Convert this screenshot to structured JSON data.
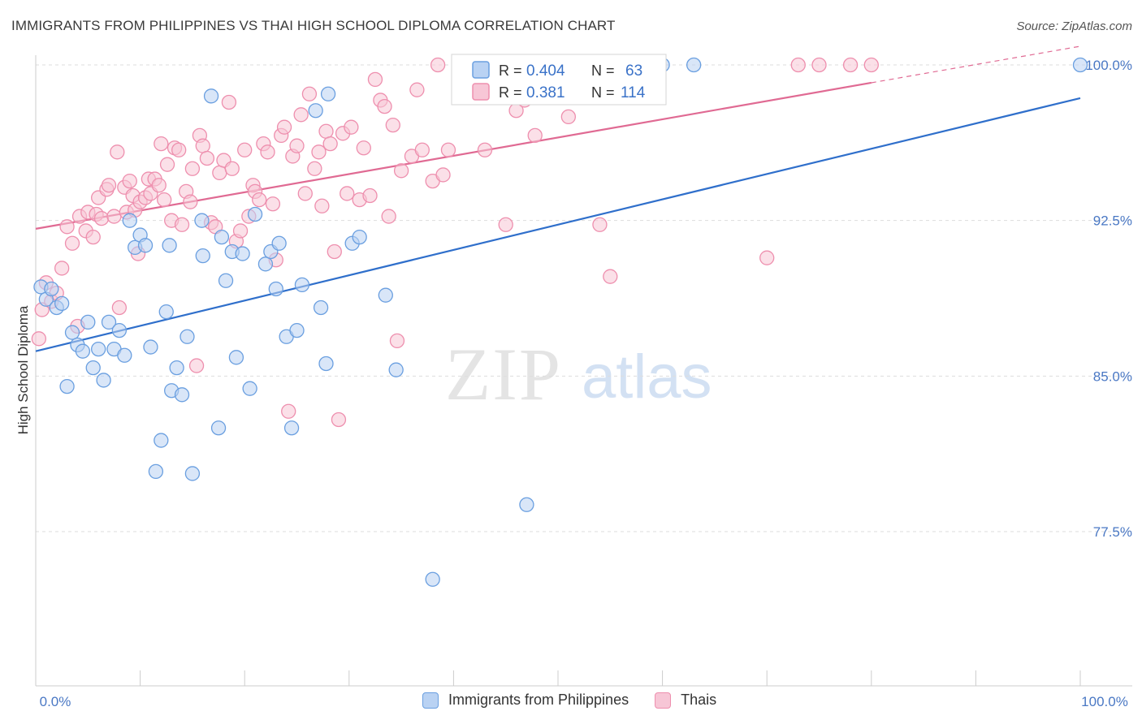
{
  "header": {
    "title": "IMMIGRANTS FROM PHILIPPINES VS THAI HIGH SCHOOL DIPLOMA CORRELATION CHART",
    "source": "Source: ZipAtlas.com"
  },
  "watermark": {
    "zip": "ZIP",
    "atlas": "atlas"
  },
  "colors": {
    "blue": "#6a9fe0",
    "blue_fill": "#b9d2f3",
    "blue_line": "#2f6fcb",
    "pink": "#ee8fae",
    "pink_fill": "#f7c6d6",
    "pink_line": "#e06a93",
    "axis_text": "#4a78c4",
    "grid": "#dddddd"
  },
  "legend_box": {
    "rows": [
      {
        "r_label": "R =",
        "r_value": "0.404",
        "n_label": "N =",
        "n_value": "63"
      },
      {
        "r_label": "R =",
        "r_value": "0.381",
        "n_label": "N =",
        "n_value": "114"
      }
    ]
  },
  "bottom_legend": {
    "series1": "Immigrants from Philippines",
    "series2": "Thais"
  },
  "chart_data": {
    "type": "scatter",
    "xlabel": "",
    "ylabel": "High School Diploma",
    "x_tick_labels": [
      "0.0%",
      "100.0%"
    ],
    "y_tick_labels": [
      "77.5%",
      "85.0%",
      "92.5%",
      "100.0%"
    ],
    "y_ticks": [
      77.5,
      85.0,
      92.5,
      100.0
    ],
    "xlim": [
      0,
      100
    ],
    "ylim": [
      70.0,
      100.8
    ],
    "grid": true,
    "legend_position": "top-center",
    "series": [
      {
        "name": "Immigrants from Philippines",
        "r": 0.404,
        "n": 63,
        "trend": {
          "x0": 0,
          "y0": 86.2,
          "x1": 100,
          "y1": 98.4
        },
        "points": [
          [
            0.5,
            89.3
          ],
          [
            1.0,
            88.7
          ],
          [
            1.5,
            89.2
          ],
          [
            2.0,
            88.3
          ],
          [
            2.5,
            88.5
          ],
          [
            3.0,
            84.5
          ],
          [
            3.5,
            87.1
          ],
          [
            4.0,
            86.5
          ],
          [
            4.5,
            86.2
          ],
          [
            5.0,
            87.6
          ],
          [
            5.5,
            85.4
          ],
          [
            6.0,
            86.3
          ],
          [
            6.5,
            84.8
          ],
          [
            7.0,
            87.6
          ],
          [
            7.5,
            86.3
          ],
          [
            8.0,
            87.2
          ],
          [
            8.5,
            86.0
          ],
          [
            9.0,
            92.5
          ],
          [
            9.5,
            91.2
          ],
          [
            10.0,
            91.8
          ],
          [
            10.5,
            91.3
          ],
          [
            11.0,
            86.4
          ],
          [
            11.5,
            80.4
          ],
          [
            12.0,
            81.9
          ],
          [
            12.5,
            88.1
          ],
          [
            12.8,
            91.3
          ],
          [
            13.0,
            84.3
          ],
          [
            13.5,
            85.4
          ],
          [
            14.0,
            84.1
          ],
          [
            14.5,
            86.9
          ],
          [
            15.0,
            80.3
          ],
          [
            15.9,
            92.5
          ],
          [
            16.0,
            90.8
          ],
          [
            16.8,
            98.5
          ],
          [
            17.5,
            82.5
          ],
          [
            17.8,
            91.7
          ],
          [
            18.2,
            89.6
          ],
          [
            18.8,
            91.0
          ],
          [
            19.2,
            85.9
          ],
          [
            19.8,
            90.9
          ],
          [
            20.5,
            84.4
          ],
          [
            21.0,
            92.8
          ],
          [
            22.0,
            90.4
          ],
          [
            22.5,
            91.0
          ],
          [
            23.0,
            89.2
          ],
          [
            23.3,
            91.4
          ],
          [
            24.0,
            86.9
          ],
          [
            24.5,
            82.5
          ],
          [
            25.0,
            87.2
          ],
          [
            25.5,
            89.4
          ],
          [
            26.8,
            97.8
          ],
          [
            27.3,
            88.3
          ],
          [
            27.8,
            85.6
          ],
          [
            28.0,
            98.6
          ],
          [
            30.3,
            91.4
          ],
          [
            31.0,
            91.7
          ],
          [
            33.5,
            88.9
          ],
          [
            34.5,
            85.3
          ],
          [
            38.0,
            75.2
          ],
          [
            47.0,
            78.8
          ],
          [
            60.0,
            100.0
          ],
          [
            63.0,
            100.0
          ],
          [
            100.0,
            100.0
          ]
        ]
      },
      {
        "name": "Thais",
        "r": 0.381,
        "n": 114,
        "trend": {
          "x0": 0,
          "y0": 92.1,
          "x1": 100,
          "y1": 100.9,
          "solid_until": 80
        },
        "points": [
          [
            0.3,
            86.8
          ],
          [
            0.6,
            88.2
          ],
          [
            1.0,
            89.5
          ],
          [
            1.5,
            88.6
          ],
          [
            2.0,
            89.0
          ],
          [
            2.5,
            90.2
          ],
          [
            3.0,
            92.2
          ],
          [
            3.5,
            91.4
          ],
          [
            4.0,
            87.4
          ],
          [
            4.2,
            92.7
          ],
          [
            4.8,
            92.0
          ],
          [
            5.0,
            92.9
          ],
          [
            5.5,
            91.7
          ],
          [
            5.8,
            92.8
          ],
          [
            6.0,
            93.6
          ],
          [
            6.3,
            92.6
          ],
          [
            6.8,
            94.0
          ],
          [
            7.0,
            94.2
          ],
          [
            7.5,
            92.7
          ],
          [
            7.8,
            95.8
          ],
          [
            8.0,
            88.3
          ],
          [
            8.5,
            94.1
          ],
          [
            8.7,
            92.9
          ],
          [
            9.0,
            94.4
          ],
          [
            9.3,
            93.7
          ],
          [
            9.5,
            93.0
          ],
          [
            9.8,
            90.9
          ],
          [
            10.0,
            93.4
          ],
          [
            10.5,
            93.6
          ],
          [
            10.8,
            94.5
          ],
          [
            11.0,
            93.8
          ],
          [
            11.4,
            94.5
          ],
          [
            11.8,
            94.2
          ],
          [
            12.0,
            96.2
          ],
          [
            12.3,
            93.5
          ],
          [
            12.6,
            95.2
          ],
          [
            13.0,
            92.5
          ],
          [
            13.3,
            96.0
          ],
          [
            13.7,
            95.9
          ],
          [
            14.0,
            92.3
          ],
          [
            14.4,
            93.9
          ],
          [
            14.8,
            93.4
          ],
          [
            15.0,
            95.0
          ],
          [
            15.4,
            85.5
          ],
          [
            15.7,
            96.6
          ],
          [
            16.0,
            96.1
          ],
          [
            16.4,
            95.5
          ],
          [
            16.8,
            92.4
          ],
          [
            17.2,
            92.2
          ],
          [
            17.6,
            94.8
          ],
          [
            18.0,
            95.4
          ],
          [
            18.5,
            98.2
          ],
          [
            18.8,
            95.0
          ],
          [
            19.2,
            91.5
          ],
          [
            19.6,
            92.0
          ],
          [
            20.0,
            95.9
          ],
          [
            20.4,
            92.7
          ],
          [
            20.8,
            94.2
          ],
          [
            21.0,
            93.9
          ],
          [
            21.4,
            93.5
          ],
          [
            21.8,
            96.2
          ],
          [
            22.2,
            95.8
          ],
          [
            22.7,
            93.3
          ],
          [
            23.0,
            90.6
          ],
          [
            23.5,
            96.6
          ],
          [
            23.8,
            97.0
          ],
          [
            24.2,
            83.3
          ],
          [
            24.6,
            95.6
          ],
          [
            25.0,
            96.1
          ],
          [
            25.4,
            97.6
          ],
          [
            25.8,
            93.8
          ],
          [
            26.2,
            98.6
          ],
          [
            26.7,
            95.0
          ],
          [
            27.1,
            95.8
          ],
          [
            27.4,
            93.2
          ],
          [
            27.8,
            96.8
          ],
          [
            28.2,
            96.2
          ],
          [
            28.6,
            91.0
          ],
          [
            29.0,
            82.9
          ],
          [
            29.4,
            96.7
          ],
          [
            29.8,
            93.8
          ],
          [
            30.2,
            97.0
          ],
          [
            31.0,
            93.5
          ],
          [
            31.4,
            96.0
          ],
          [
            32.0,
            93.7
          ],
          [
            32.5,
            99.3
          ],
          [
            33.0,
            98.3
          ],
          [
            33.4,
            98.0
          ],
          [
            33.8,
            92.7
          ],
          [
            34.2,
            97.1
          ],
          [
            34.6,
            86.7
          ],
          [
            35.0,
            94.9
          ],
          [
            36.0,
            95.6
          ],
          [
            36.5,
            98.8
          ],
          [
            37.0,
            95.9
          ],
          [
            38.0,
            94.4
          ],
          [
            38.5,
            100.0
          ],
          [
            39.0,
            94.7
          ],
          [
            39.5,
            95.9
          ],
          [
            41.0,
            100.0
          ],
          [
            43.0,
            95.9
          ],
          [
            45.0,
            92.3
          ],
          [
            46.0,
            97.8
          ],
          [
            46.8,
            98.3
          ],
          [
            47.8,
            96.6
          ],
          [
            48.6,
            100.0
          ],
          [
            51.0,
            97.5
          ],
          [
            54.0,
            92.3
          ],
          [
            55.0,
            89.8
          ],
          [
            70.0,
            90.7
          ],
          [
            73.0,
            100.0
          ],
          [
            75.0,
            100.0
          ],
          [
            78.0,
            100.0
          ],
          [
            80.0,
            100.0
          ]
        ]
      }
    ]
  }
}
